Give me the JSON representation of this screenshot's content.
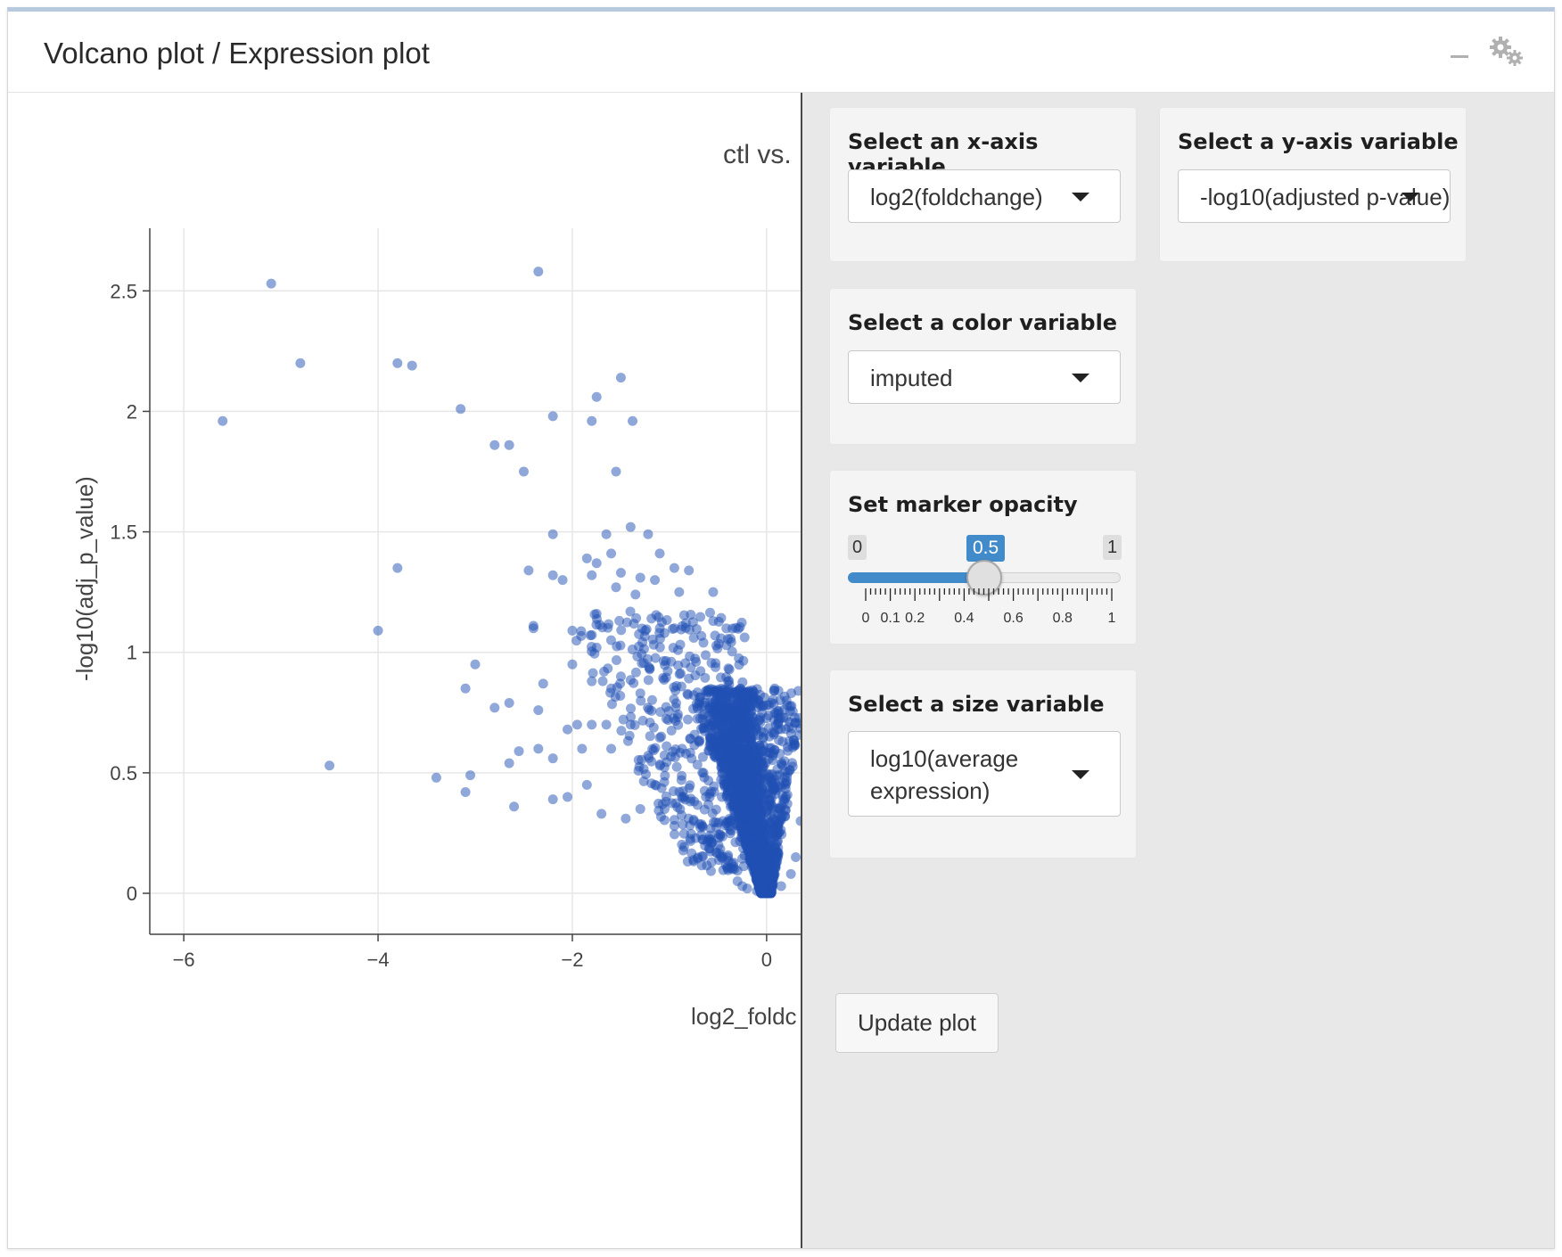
{
  "card": {
    "title": "Volcano plot / Expression plot",
    "collapse_icon": "minus-icon",
    "settings_icon": "gears-icon"
  },
  "controls": {
    "x_axis": {
      "label": "Select an x-axis variable",
      "value": "log2(foldchange)"
    },
    "y_axis": {
      "label": "Select a y-axis variable",
      "value": "-log10(adjusted p-value)"
    },
    "color": {
      "label": "Select a color variable",
      "value": "imputed"
    },
    "opacity": {
      "label": "Set marker opacity",
      "min": "0",
      "max": "1",
      "value": "0.5",
      "value_fraction": 0.5,
      "grid_labels": [
        "0",
        "0.1",
        "0.2",
        "0.4",
        "0.6",
        "0.8",
        "1"
      ]
    },
    "size": {
      "label": "Select a size variable",
      "value_line1": "log10(average",
      "value_line2": "expression)"
    },
    "update_button": "Update plot"
  },
  "chart_data": {
    "type": "scatter",
    "title": "ctl vs.",
    "xlabel": "log2_foldc",
    "ylabel": "-log10(adj_p_value)",
    "xlim": [
      -6.35,
      0.35
    ],
    "ylim": [
      -0.17,
      2.76
    ],
    "x_ticks": [
      "−6",
      "−4",
      "−2",
      "0"
    ],
    "y_ticks": [
      "0",
      "0.5",
      "1",
      "1.5",
      "2",
      "2.5"
    ],
    "grid": true,
    "marker_color": "#1f4fb4",
    "marker_opacity": 0.5,
    "series": [
      {
        "values": [
          [
            -5.1,
            2.53
          ],
          [
            -2.35,
            2.58
          ],
          [
            -4.8,
            2.2
          ],
          [
            -3.8,
            2.2
          ],
          [
            -3.65,
            2.19
          ],
          [
            -5.6,
            1.96
          ],
          [
            -1.5,
            2.14
          ],
          [
            -1.75,
            2.06
          ],
          [
            -3.15,
            2.01
          ],
          [
            -2.2,
            1.98
          ],
          [
            -1.8,
            1.96
          ],
          [
            -1.38,
            1.96
          ],
          [
            -2.8,
            1.86
          ],
          [
            -2.65,
            1.86
          ],
          [
            -2.5,
            1.75
          ],
          [
            -1.55,
            1.75
          ],
          [
            -1.4,
            1.52
          ],
          [
            -1.22,
            1.49
          ],
          [
            -2.2,
            1.49
          ],
          [
            -1.65,
            1.49
          ],
          [
            -1.6,
            1.41
          ],
          [
            -1.75,
            1.37
          ],
          [
            -1.85,
            1.39
          ],
          [
            -1.1,
            1.41
          ],
          [
            -2.45,
            1.34
          ],
          [
            -3.8,
            1.35
          ],
          [
            -2.2,
            1.32
          ],
          [
            -2.1,
            1.3
          ],
          [
            -1.8,
            1.32
          ],
          [
            -1.5,
            1.33
          ],
          [
            -1.3,
            1.31
          ],
          [
            -1.15,
            1.3
          ],
          [
            -0.95,
            1.35
          ],
          [
            -0.8,
            1.34
          ],
          [
            -0.55,
            1.25
          ],
          [
            -1.55,
            1.27
          ],
          [
            -1.35,
            1.24
          ],
          [
            -0.9,
            1.25
          ],
          [
            -1.75,
            1.16
          ],
          [
            -2.4,
            1.1
          ],
          [
            -2.4,
            1.11
          ],
          [
            -4.0,
            1.09
          ],
          [
            -2.0,
            1.09
          ],
          [
            -1.25,
            1.09
          ],
          [
            -1.1,
            1.1
          ],
          [
            -0.95,
            1.1
          ],
          [
            -0.75,
            1.06
          ],
          [
            -0.55,
            1.13
          ],
          [
            -0.65,
            1.04
          ],
          [
            -1.75,
            1.02
          ],
          [
            -3.0,
            0.95
          ],
          [
            -3.1,
            0.85
          ],
          [
            -2.3,
            0.87
          ],
          [
            -2.0,
            0.95
          ],
          [
            -1.8,
            0.88
          ],
          [
            -1.6,
            0.85
          ],
          [
            -1.5,
            0.9
          ],
          [
            -1.3,
            0.83
          ],
          [
            -2.8,
            0.77
          ],
          [
            -2.65,
            0.79
          ],
          [
            -2.35,
            0.76
          ],
          [
            -2.05,
            0.68
          ],
          [
            -1.95,
            0.7
          ],
          [
            -1.8,
            0.7
          ],
          [
            -1.65,
            0.7
          ],
          [
            -1.4,
            0.7
          ],
          [
            -2.35,
            0.6
          ],
          [
            -2.55,
            0.59
          ],
          [
            -2.65,
            0.54
          ],
          [
            -2.2,
            0.56
          ],
          [
            -1.9,
            0.6
          ],
          [
            -1.6,
            0.6
          ],
          [
            -4.5,
            0.53
          ],
          [
            -3.4,
            0.48
          ],
          [
            -3.05,
            0.49
          ],
          [
            -3.1,
            0.42
          ],
          [
            -2.6,
            0.36
          ],
          [
            -2.2,
            0.39
          ],
          [
            -2.05,
            0.4
          ],
          [
            -1.85,
            0.45
          ],
          [
            -1.7,
            0.33
          ],
          [
            -1.45,
            0.31
          ],
          [
            -1.3,
            0.35
          ],
          [
            -1.15,
            0.45
          ],
          [
            -1.05,
            0.35
          ],
          [
            -0.95,
            0.28
          ],
          [
            -0.85,
            0.4
          ],
          [
            -0.75,
            0.3
          ],
          [
            -0.65,
            0.5
          ],
          [
            -0.6,
            0.22
          ],
          [
            -0.5,
            0.6
          ],
          [
            -0.45,
            0.3
          ],
          [
            -0.4,
            0.15
          ],
          [
            -0.35,
            0.1
          ],
          [
            -0.3,
            0.05
          ],
          [
            -0.25,
            0.03
          ],
          [
            -0.2,
            0.02
          ],
          [
            -0.1,
            0.01
          ],
          [
            0.05,
            0.01
          ],
          [
            0.15,
            0.03
          ],
          [
            0.25,
            0.08
          ],
          [
            0.3,
            0.15
          ],
          [
            0.35,
            0.3
          ]
        ]
      }
    ]
  }
}
